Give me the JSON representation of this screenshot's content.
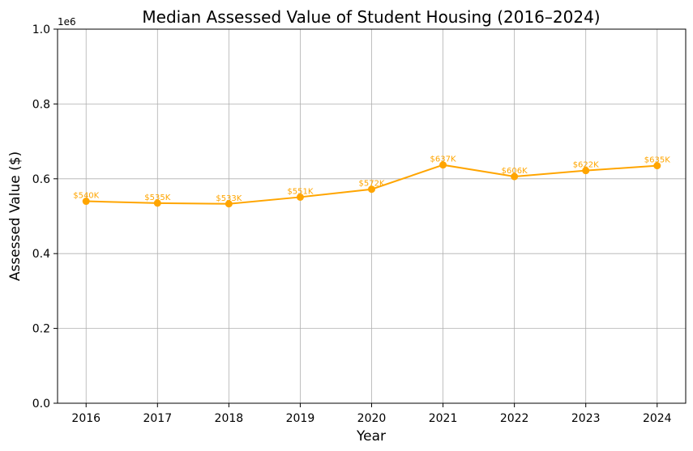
{
  "chart_data": {
    "type": "line",
    "title": "Median Assessed Value of Student Housing (2016–2024)",
    "xlabel": "Year",
    "ylabel": "Assessed Value ($)",
    "y_offset_label": "1e6",
    "y_scale_factor": 1000000,
    "x": [
      2016,
      2017,
      2018,
      2019,
      2020,
      2021,
      2022,
      2023,
      2024
    ],
    "x_tick_labels": [
      "2016",
      "2017",
      "2018",
      "2019",
      "2020",
      "2021",
      "2022",
      "2023",
      "2024"
    ],
    "series": [
      {
        "values": [
          540000,
          535000,
          533000,
          551000,
          572000,
          637000,
          606000,
          622000,
          635000
        ],
        "labels": [
          "$540K",
          "$535K",
          "$533K",
          "$551K",
          "$572K",
          "$637K",
          "$606K",
          "$622K",
          "$635K"
        ],
        "color": "#FFA500",
        "marker": "circle"
      }
    ],
    "ylim": [
      0,
      1000000
    ],
    "y_ticks": [
      0,
      200000,
      400000,
      600000,
      800000,
      1000000
    ],
    "y_tick_labels": [
      "0.0",
      "0.2",
      "0.4",
      "0.6",
      "0.8",
      "1.0"
    ],
    "xlim": [
      2015.6,
      2024.4
    ],
    "grid": true,
    "legend": "none"
  }
}
